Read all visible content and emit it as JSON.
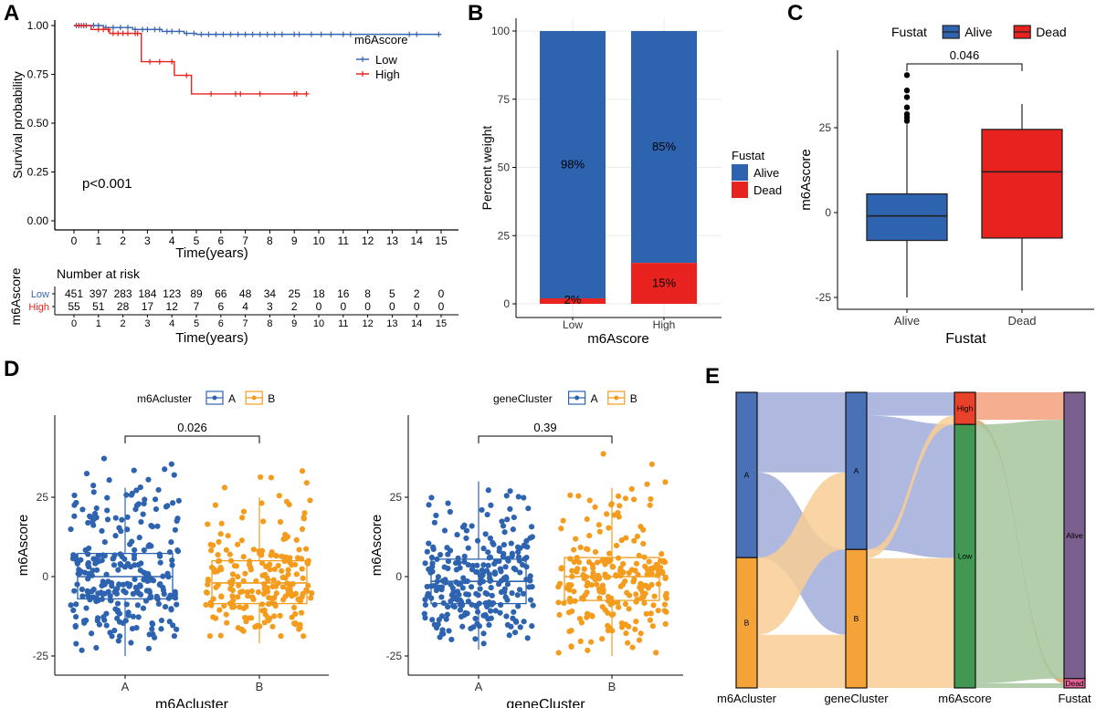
{
  "panel_labels": [
    "A",
    "B",
    "C",
    "D",
    "E"
  ],
  "chart_data": [
    {
      "panel": "A",
      "type": "line",
      "title": "",
      "xlabel": "Time(years)",
      "ylabel": "Survival probability",
      "xlim": [
        0,
        15
      ],
      "ylim": [
        0,
        1
      ],
      "xticks": [
        "0",
        "1",
        "2",
        "3",
        "4",
        "5",
        "6",
        "7",
        "8",
        "9",
        "10",
        "11",
        "12",
        "13",
        "14",
        "15"
      ],
      "yticks": [
        "0.00",
        "0.25",
        "0.50",
        "0.75",
        "1.00"
      ],
      "annotation": "p<0.001",
      "legend": {
        "title": "m6Ascore",
        "position": "right"
      },
      "series": [
        {
          "name": "Low",
          "color": "#3a65b0",
          "steps": [
            [
              0,
              1.0
            ],
            [
              1.2,
              0.99
            ],
            [
              2.4,
              0.98
            ],
            [
              3.6,
              0.97
            ],
            [
              4.5,
              0.96
            ],
            [
              5.0,
              0.955
            ]
          ],
          "end": 15,
          "censor": [
            0.1,
            0.3,
            0.5,
            0.8,
            1.0,
            1.3,
            1.6,
            1.9,
            2.2,
            2.5,
            2.8,
            3.0,
            3.3,
            3.5,
            3.8,
            4.0,
            4.3,
            4.6,
            4.9,
            5.2,
            5.5,
            5.8,
            6.1,
            6.4,
            6.7,
            7.0,
            7.3,
            7.6,
            7.9,
            8.2,
            8.5,
            9.0,
            9.2,
            9.7,
            10.1,
            10.5,
            11.0,
            11.3,
            13.7,
            14.0,
            14.9
          ]
        },
        {
          "name": "High",
          "color": "#e8231f",
          "steps": [
            [
              0,
              1.0
            ],
            [
              0.7,
              0.98
            ],
            [
              1.45,
              0.96
            ],
            [
              2.75,
              0.815
            ],
            [
              4.1,
              0.745
            ],
            [
              4.8,
              0.65
            ]
          ],
          "end": 9.5,
          "censor": [
            0.2,
            0.4,
            1.0,
            1.2,
            1.4,
            1.6,
            1.8,
            2.0,
            2.2,
            2.5,
            2.6,
            3.1,
            3.5,
            4.0,
            4.6,
            5.6,
            6.6,
            6.8,
            7.6,
            9.0,
            9.1,
            9.5
          ]
        }
      ],
      "risk_table": {
        "title": "Number at risk",
        "ylabel": "m6Ascore",
        "xlabel": "Time(years)",
        "rows": [
          {
            "name": "Low",
            "color": "#3a65b0",
            "values": [
              "451",
              "397",
              "283",
              "184",
              "123",
              "89",
              "66",
              "48",
              "34",
              "25",
              "18",
              "16",
              "8",
              "5",
              "2",
              "0"
            ]
          },
          {
            "name": "High",
            "color": "#e8231f",
            "values": [
              "55",
              "51",
              "28",
              "17",
              "12",
              "7",
              "6",
              "4",
              "3",
              "2",
              "0",
              "0",
              "0",
              "0",
              "0",
              "0"
            ]
          }
        ]
      }
    },
    {
      "panel": "B",
      "type": "bar",
      "stacked": true,
      "categories": [
        "Low",
        "High"
      ],
      "xlabel": "m6Ascore",
      "ylabel": "Percent weight",
      "ylim": [
        0,
        100
      ],
      "yticks": [
        "0",
        "25",
        "50",
        "75",
        "100"
      ],
      "grid": true,
      "legend": {
        "title": "Fustat",
        "position": "right"
      },
      "series": [
        {
          "name": "Alive",
          "color": "#2e63b0",
          "values": [
            98,
            85
          ],
          "labels": [
            "98%",
            "85%"
          ]
        },
        {
          "name": "Dead",
          "color": "#e8231f",
          "values": [
            2,
            15
          ],
          "labels": [
            "2%",
            "15%"
          ]
        }
      ]
    },
    {
      "panel": "C",
      "type": "box",
      "categories": [
        "Alive",
        "Dead"
      ],
      "xlabel": "Fustat",
      "ylabel": "m6Ascore",
      "ylim": [
        -28,
        45
      ],
      "yticks": [
        "-25",
        "0",
        "25"
      ],
      "legend": {
        "title": "Fustat",
        "position": "top",
        "entries": [
          "Alive",
          "Dead"
        ]
      },
      "colors": [
        "#2e63b0",
        "#e8231f"
      ],
      "boxes": [
        {
          "name": "Alive",
          "whisker_low": -25,
          "q1": -8.2,
          "median": -1,
          "q3": 5.5,
          "whisker_high": 26,
          "outliers": [
            27,
            28,
            29,
            31,
            34,
            36,
            40.5
          ]
        },
        {
          "name": "Dead",
          "whisker_low": -23,
          "q1": -7.5,
          "median": 12,
          "q3": 24.5,
          "whisker_high": 32,
          "outliers": []
        }
      ],
      "comparison": {
        "label": "0.046"
      }
    },
    {
      "panel": "D",
      "type": "box",
      "categories": [
        "A",
        "B"
      ],
      "xlabel": "m6Acluster",
      "ylabel": "m6Ascore",
      "ylim": [
        -28,
        45
      ],
      "yticks": [
        "-25",
        "0",
        "25"
      ],
      "legend": {
        "title": "m6Acluster",
        "position": "top",
        "entries": [
          "A",
          "B"
        ]
      },
      "colors": [
        "#2e63b0",
        "#f39c1e"
      ],
      "jittered_points": true,
      "boxes": [
        {
          "name": "A",
          "whisker_low": -25,
          "q1": -7,
          "median": 0,
          "q3": 7.3,
          "whisker_high": 28,
          "range": [
            -25,
            41
          ]
        },
        {
          "name": "B",
          "whisker_low": -21,
          "q1": -8.5,
          "median": -2,
          "q3": 5,
          "whisker_high": 25,
          "range": [
            -21,
            35
          ]
        }
      ],
      "comparison": {
        "label": "0.026"
      }
    },
    {
      "panel": "D",
      "type": "box",
      "categories": [
        "A",
        "B"
      ],
      "xlabel": "geneCluster",
      "ylabel": "m6Ascore",
      "ylim": [
        -28,
        45
      ],
      "yticks": [
        "-25",
        "0",
        "25"
      ],
      "legend": {
        "title": "geneCluster",
        "position": "top",
        "entries": [
          "A",
          "B"
        ]
      },
      "colors": [
        "#2e63b0",
        "#f39c1e"
      ],
      "jittered_points": true,
      "boxes": [
        {
          "name": "A",
          "whisker_low": -23,
          "q1": -8.5,
          "median": -1.5,
          "q3": 5.5,
          "whisker_high": 30,
          "range": [
            -23,
            31
          ]
        },
        {
          "name": "B",
          "whisker_low": -25,
          "q1": -7.5,
          "median": 0,
          "q3": 6,
          "whisker_high": 28,
          "range": [
            -25,
            41
          ]
        }
      ],
      "comparison": {
        "label": "0.39"
      }
    },
    {
      "panel": "E",
      "type": "sankey",
      "axes": [
        "m6Acluster",
        "geneCluster",
        "m6Ascore",
        "Fustat"
      ],
      "nodes": [
        {
          "id": "mA",
          "axis": 0,
          "label": "A",
          "color": "#4a70b5"
        },
        {
          "id": "mB",
          "axis": 0,
          "label": "B",
          "color": "#f3a338"
        },
        {
          "id": "gA",
          "axis": 1,
          "label": "A",
          "color": "#4a70b5"
        },
        {
          "id": "gB",
          "axis": 1,
          "label": "B",
          "color": "#f3a338"
        },
        {
          "id": "High",
          "axis": 2,
          "label": "High",
          "color": "#e8432a"
        },
        {
          "id": "Low",
          "axis": 2,
          "label": "Low",
          "color": "#429852"
        },
        {
          "id": "Alive",
          "axis": 3,
          "label": "Alive",
          "color": "#7b5f8f"
        },
        {
          "id": "Dead",
          "axis": 3,
          "label": "Dead",
          "color": "#e7649a"
        }
      ],
      "links": [
        {
          "source": "mA",
          "target": "gA",
          "value": 137,
          "color": "#a1acd9"
        },
        {
          "source": "mA",
          "target": "gB",
          "value": 146,
          "color": "#a1acd9"
        },
        {
          "source": "mB",
          "target": "gA",
          "value": 132,
          "color": "#f8cc95"
        },
        {
          "source": "mB",
          "target": "gB",
          "value": 91,
          "color": "#f8cc95"
        },
        {
          "source": "gA",
          "target": "High",
          "value": 40,
          "color": "#a1acd9"
        },
        {
          "source": "gA",
          "target": "Low",
          "value": 229,
          "color": "#a1acd9"
        },
        {
          "source": "gB",
          "target": "High",
          "value": 15,
          "color": "#f8cc95"
        },
        {
          "source": "gB",
          "target": "Low",
          "value": 222,
          "color": "#f8cc95"
        },
        {
          "source": "High",
          "target": "Alive",
          "value": 47,
          "color": "#f4a07e"
        },
        {
          "source": "High",
          "target": "Dead",
          "value": 8,
          "color": "#d9a56a"
        },
        {
          "source": "Low",
          "target": "Alive",
          "value": 443,
          "color": "#a6c59b"
        },
        {
          "source": "Low",
          "target": "Dead",
          "value": 8,
          "color": "#a6c59b"
        }
      ]
    }
  ]
}
